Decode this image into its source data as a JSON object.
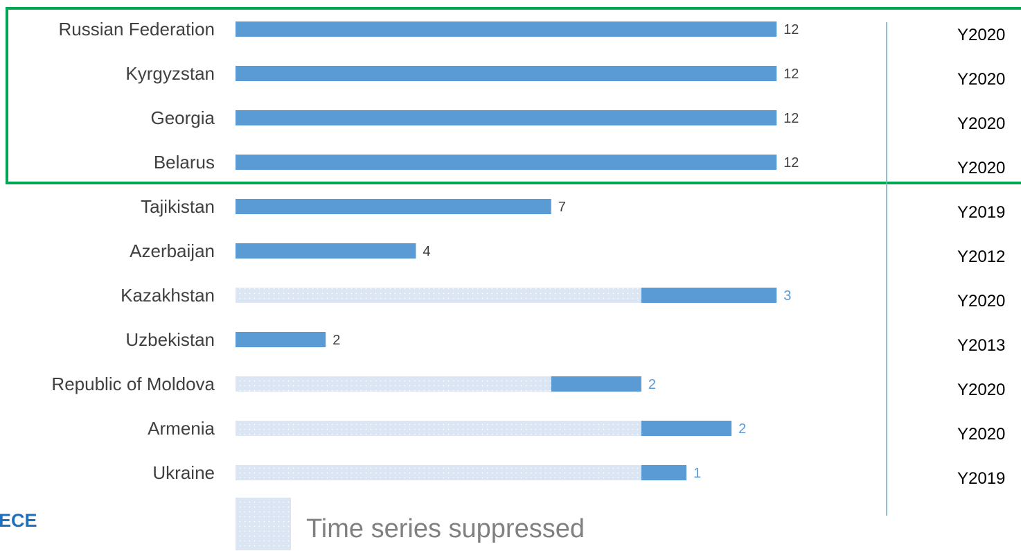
{
  "colors": {
    "bar": "#5b9bd5",
    "suppressed": "#dbe5f3",
    "highlight": "#00a651",
    "divider": "#6fa8c8",
    "logo": "#1f6fbf"
  },
  "logo": {
    "text": "ECE"
  },
  "legend": {
    "label": "Time series suppressed"
  },
  "highlight_box": {
    "rows": [
      "Russian Federation",
      "Kyrgyzstan",
      "Georgia",
      "Belarus"
    ]
  },
  "chart_data": {
    "type": "bar",
    "orientation": "horizontal",
    "categories": [
      "Russian Federation",
      "Kyrgyzstan",
      "Georgia",
      "Belarus",
      "Tajikistan",
      "Azerbaijan",
      "Kazakhstan",
      "Uzbekistan",
      "Republic of Moldova",
      "Armenia",
      "Ukraine"
    ],
    "values": [
      12,
      12,
      12,
      12,
      7,
      4,
      3,
      2,
      2,
      2,
      1
    ],
    "value_labels": [
      "12",
      "12",
      "12",
      "12",
      "7",
      "4",
      "3",
      "2",
      "2",
      "2",
      "1"
    ],
    "suppressed": [
      0,
      0,
      0,
      0,
      0,
      0,
      9,
      0,
      7,
      9,
      9
    ],
    "years": [
      "Y2020",
      "Y2020",
      "Y2020",
      "Y2020",
      "Y2019",
      "Y2012",
      "Y2020",
      "Y2013",
      "Y2020",
      "Y2020",
      "Y2019"
    ],
    "xlim": [
      0,
      12
    ],
    "grid": false,
    "legend_position": "bottom"
  }
}
